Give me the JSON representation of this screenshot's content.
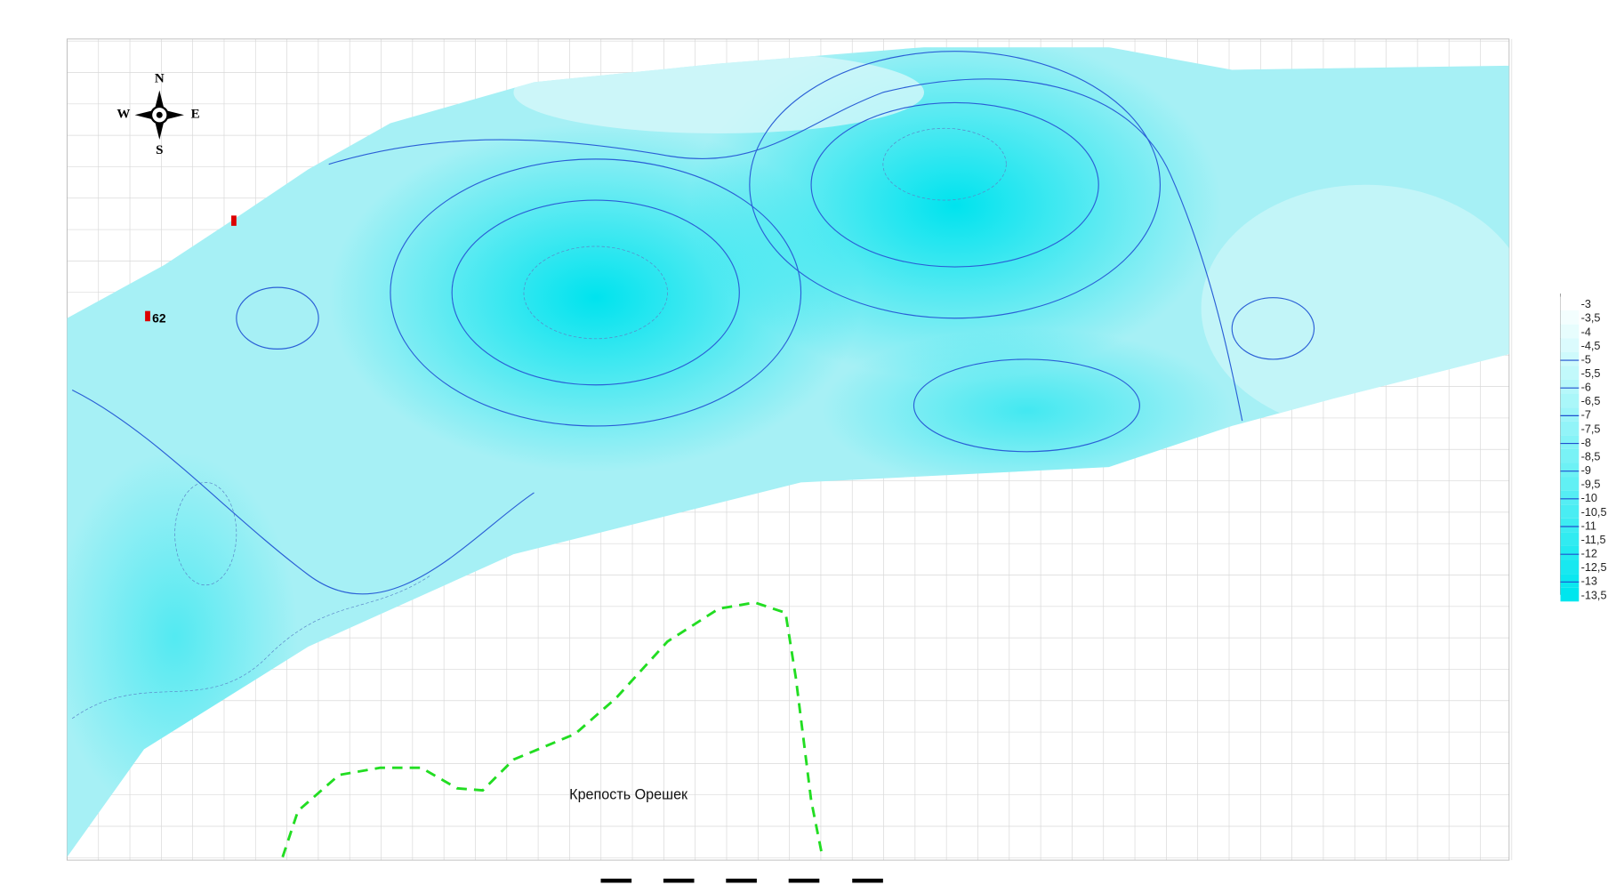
{
  "compass": {
    "north": "N",
    "south": "S",
    "west": "W",
    "east": "E"
  },
  "markers": [
    {
      "label": "62"
    }
  ],
  "map_label": "Крепость Орешек",
  "legend": {
    "labels": [
      "-3",
      "-3,5",
      "-4",
      "-4,5",
      "-5",
      "-5,5",
      "-6",
      "-6,5",
      "-7",
      "-7,5",
      "-8",
      "-8,5",
      "-9",
      "-9,5",
      "-10",
      "-10,5",
      "-11",
      "-11,5",
      "-12",
      "-12,5",
      "-13",
      "-13,5"
    ]
  }
}
